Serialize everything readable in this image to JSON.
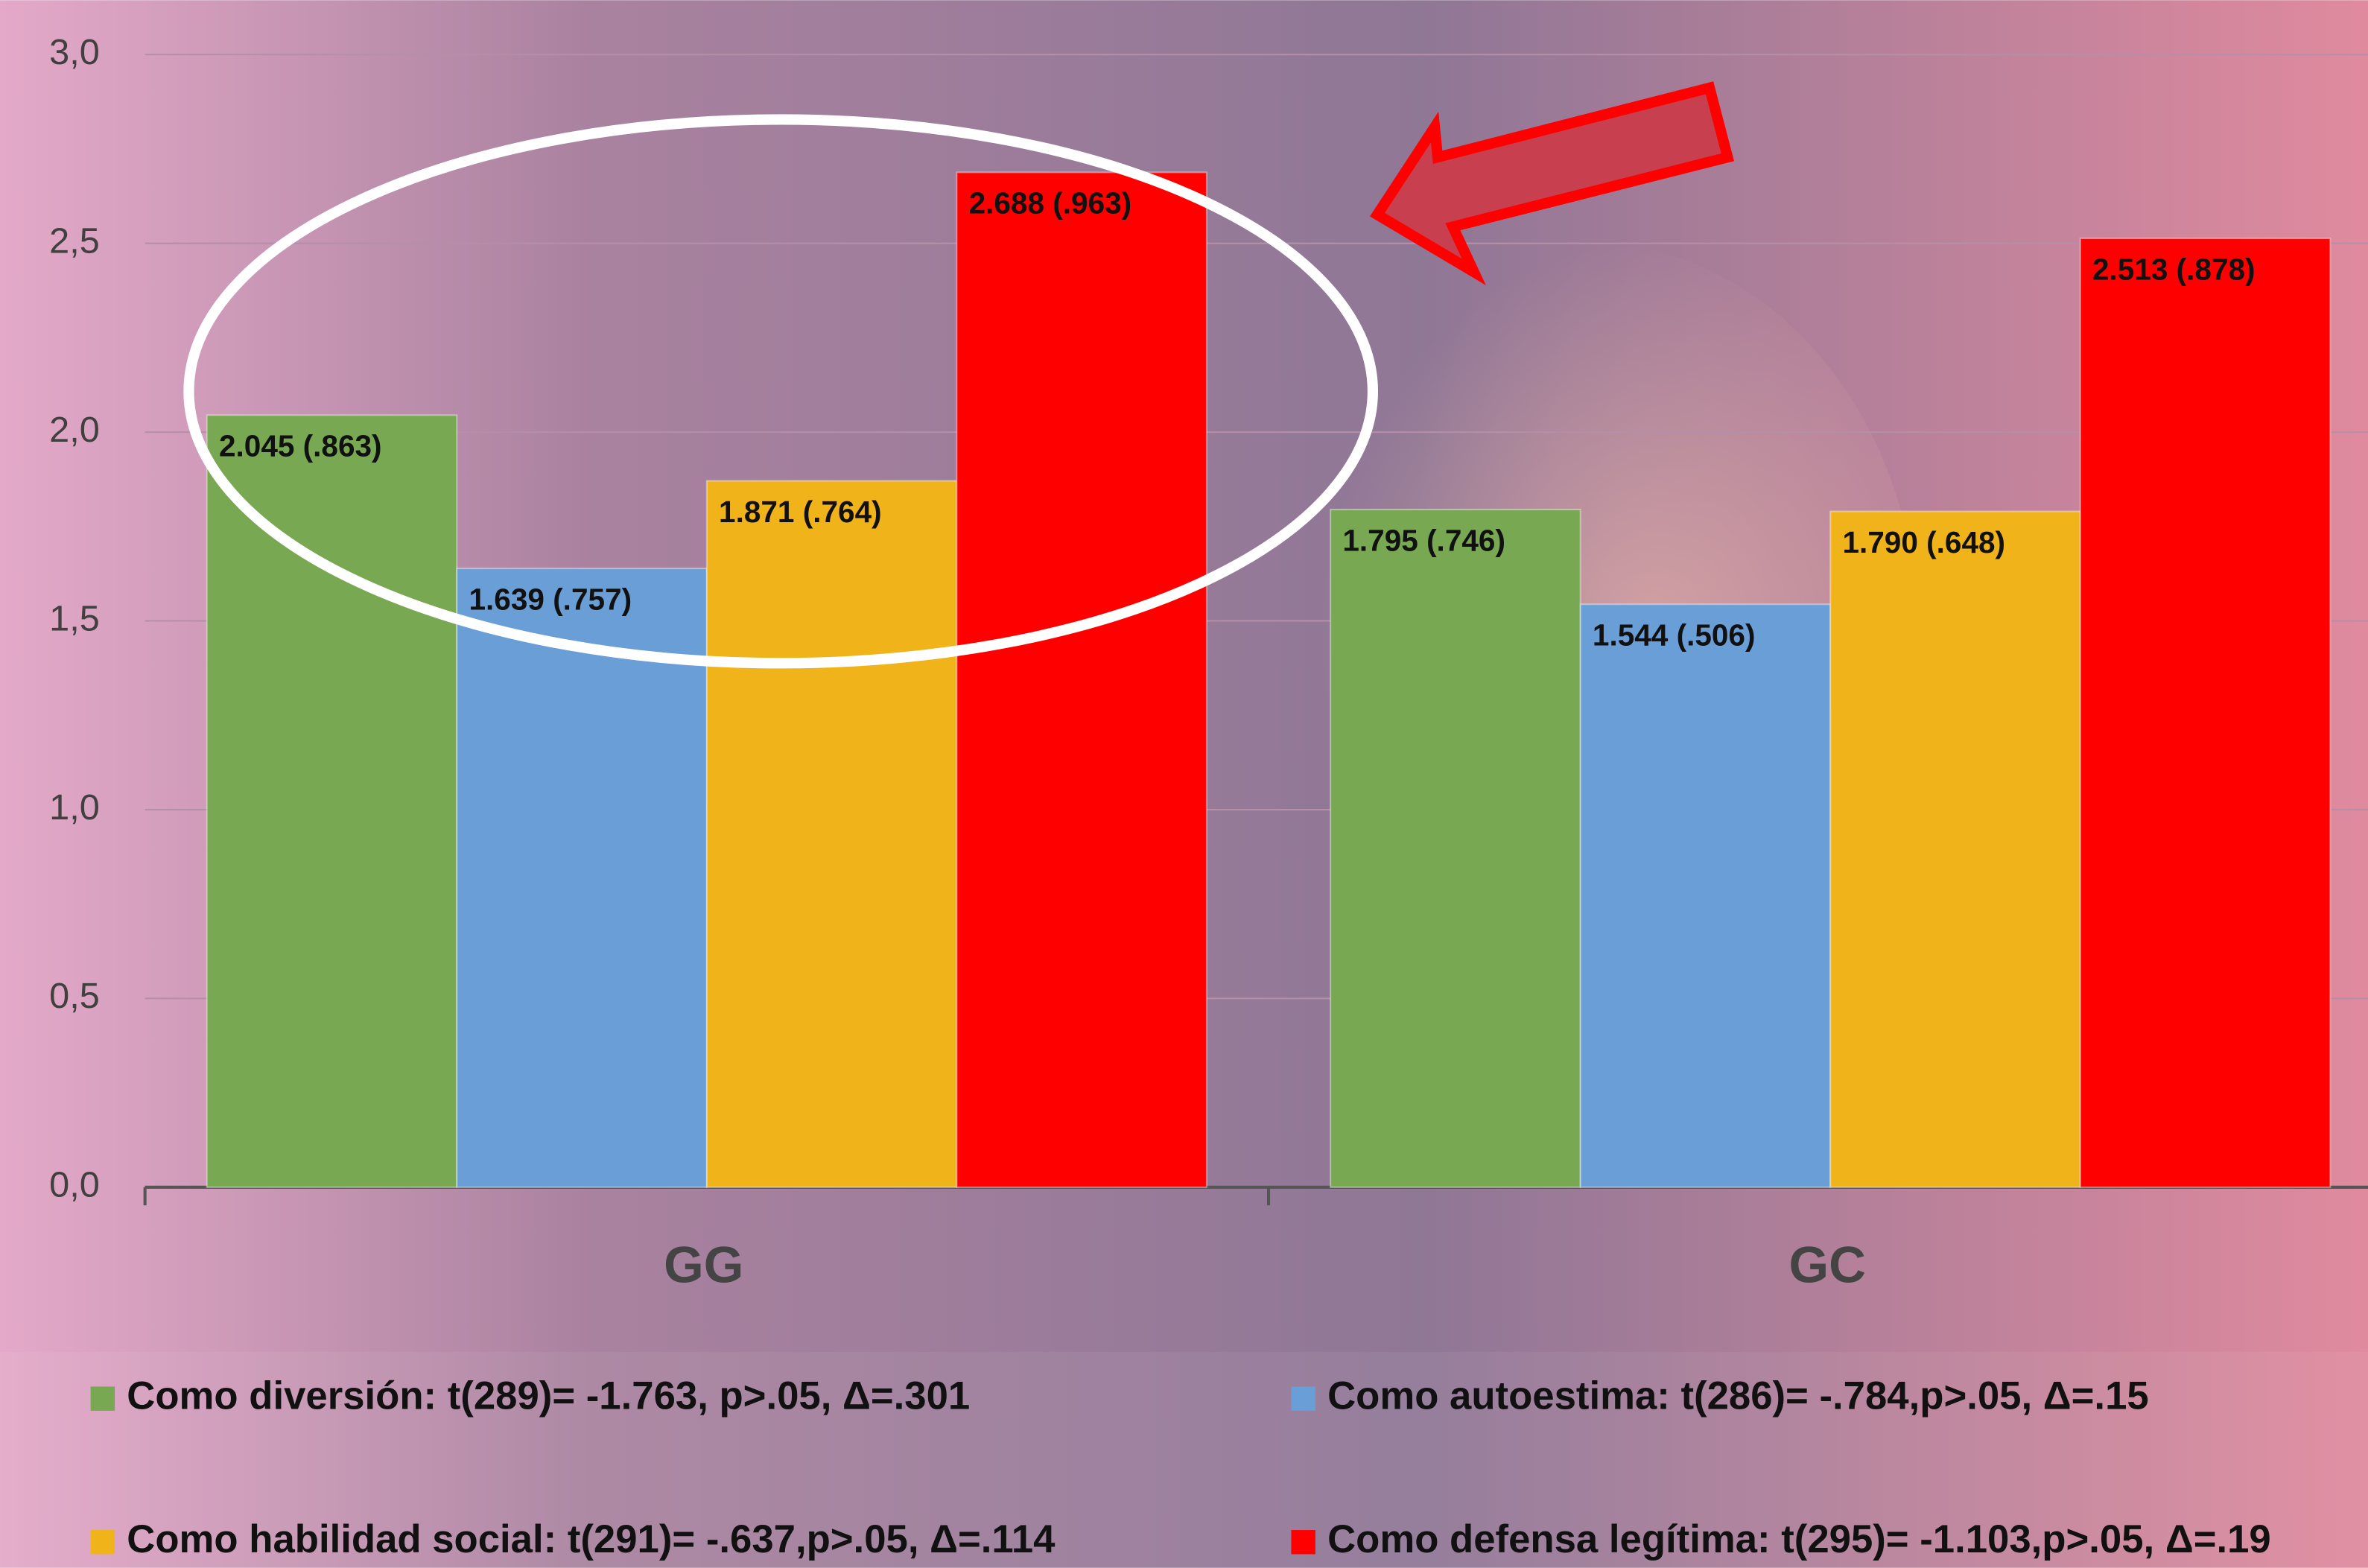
{
  "chart_data": {
    "type": "bar",
    "categories": [
      "GG",
      "GC"
    ],
    "series": [
      {
        "name": "Como diversión: t(289)= -1.763, p>.05, Δ=.301",
        "color": "#78a852",
        "values": [
          2.045,
          1.795
        ],
        "value_labels": [
          "2.045 (.863)",
          "1.795 (.746)"
        ]
      },
      {
        "name": "Como autoestima: t(286)= -.784,p>.05, Δ=.15",
        "color": "#6a9ed6",
        "values": [
          1.639,
          1.544
        ],
        "value_labels": [
          "1.639 (.757)",
          "1.544 (.506)"
        ]
      },
      {
        "name": "Como habilidad social: t(291)= -.637,p>.05, Δ=.114",
        "color": "#f0b41a",
        "values": [
          1.871,
          1.79
        ],
        "value_labels": [
          "1.871 (.764)",
          "1.790 (.648)"
        ]
      },
      {
        "name": "Como defensa legítima: t(295)= -1.103,p>.05, Δ=.19",
        "color": "#ff0000",
        "values": [
          2.688,
          2.513
        ],
        "value_labels": [
          "2.688 (.963)",
          "2.513 (.878)"
        ]
      }
    ],
    "ylim": [
      0,
      3
    ],
    "yticks": [
      {
        "value": 0,
        "label": "0,0"
      },
      {
        "value": 0.5,
        "label": "0,5"
      },
      {
        "value": 1,
        "label": "1,0"
      },
      {
        "value": 1.5,
        "label": "1,5"
      },
      {
        "value": 2,
        "label": "2,0"
      },
      {
        "value": 2.5,
        "label": "2,5"
      },
      {
        "value": 3,
        "label": "3,0"
      }
    ],
    "grid": true
  }
}
